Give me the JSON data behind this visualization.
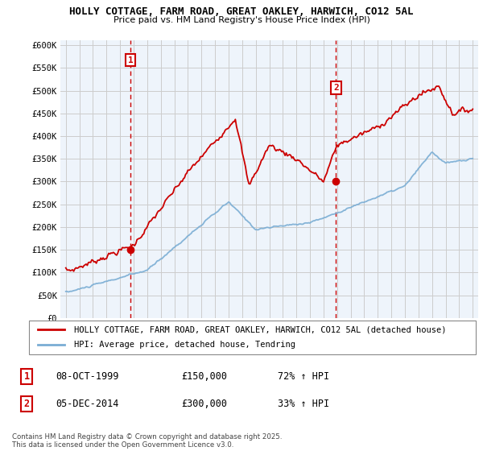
{
  "title": "HOLLY COTTAGE, FARM ROAD, GREAT OAKLEY, HARWICH, CO12 5AL",
  "subtitle": "Price paid vs. HM Land Registry's House Price Index (HPI)",
  "ylabel_ticks": [
    "£0",
    "£50K",
    "£100K",
    "£150K",
    "£200K",
    "£250K",
    "£300K",
    "£350K",
    "£400K",
    "£450K",
    "£500K",
    "£550K",
    "£600K"
  ],
  "ytick_vals": [
    0,
    50000,
    100000,
    150000,
    200000,
    250000,
    300000,
    350000,
    400000,
    450000,
    500000,
    550000,
    600000
  ],
  "ylim": [
    0,
    610000
  ],
  "xlim_start": 1994.6,
  "xlim_end": 2025.4,
  "sale1_x": 1999.77,
  "sale1_y": 150000,
  "sale1_label": "1",
  "sale2_x": 2014.92,
  "sale2_y": 300000,
  "sale2_label": "2",
  "color_house": "#cc0000",
  "color_hpi": "#7aadd4",
  "color_hpi_fill": "#ddeef7",
  "color_grid": "#cccccc",
  "color_vline": "#cc0000",
  "plot_bg": "#eef4fb",
  "legend_house": "HOLLY COTTAGE, FARM ROAD, GREAT OAKLEY, HARWICH, CO12 5AL (detached house)",
  "legend_hpi": "HPI: Average price, detached house, Tendring",
  "note1_num": "1",
  "note1_date": "08-OCT-1999",
  "note1_price": "£150,000",
  "note1_hpi": "72% ↑ HPI",
  "note2_num": "2",
  "note2_date": "05-DEC-2014",
  "note2_price": "£300,000",
  "note2_hpi": "33% ↑ HPI",
  "copyright": "Contains HM Land Registry data © Crown copyright and database right 2025.\nThis data is licensed under the Open Government Licence v3.0.",
  "background_color": "#ffffff"
}
